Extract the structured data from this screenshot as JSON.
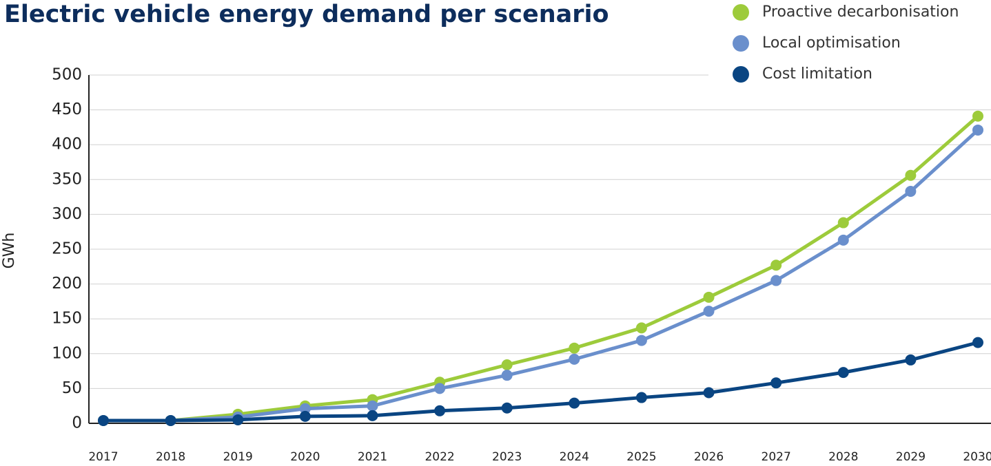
{
  "chart_data": {
    "type": "line",
    "title": "Electric vehicle energy demand per scenario",
    "y_label": "GWh",
    "categories": [
      "2017",
      "2018",
      "2019",
      "2020",
      "2021",
      "2022",
      "2023",
      "2024",
      "2025",
      "2026",
      "2027",
      "2028",
      "2029",
      "2030"
    ],
    "series": [
      {
        "name": "Proactive decarbonisation",
        "color": "#9dcb3b",
        "values": [
          4,
          4,
          13,
          25,
          34,
          59,
          84,
          108,
          137,
          181,
          227,
          288,
          356,
          441
        ]
      },
      {
        "name": "Local optimisation",
        "color": "#6a8fcc",
        "values": [
          4,
          4,
          9,
          21,
          25,
          50,
          69,
          92,
          119,
          161,
          205,
          263,
          333,
          421
        ]
      },
      {
        "name": "Cost limitation",
        "color": "#0a4582",
        "values": [
          4,
          4,
          5,
          10,
          11,
          18,
          22,
          29,
          37,
          44,
          58,
          73,
          91,
          116
        ]
      }
    ],
    "ylim": [
      0,
      500
    ],
    "yticks": [
      0,
      50,
      100,
      150,
      200,
      250,
      300,
      350,
      400,
      450,
      500
    ],
    "grid": true,
    "legend": "top-right"
  }
}
